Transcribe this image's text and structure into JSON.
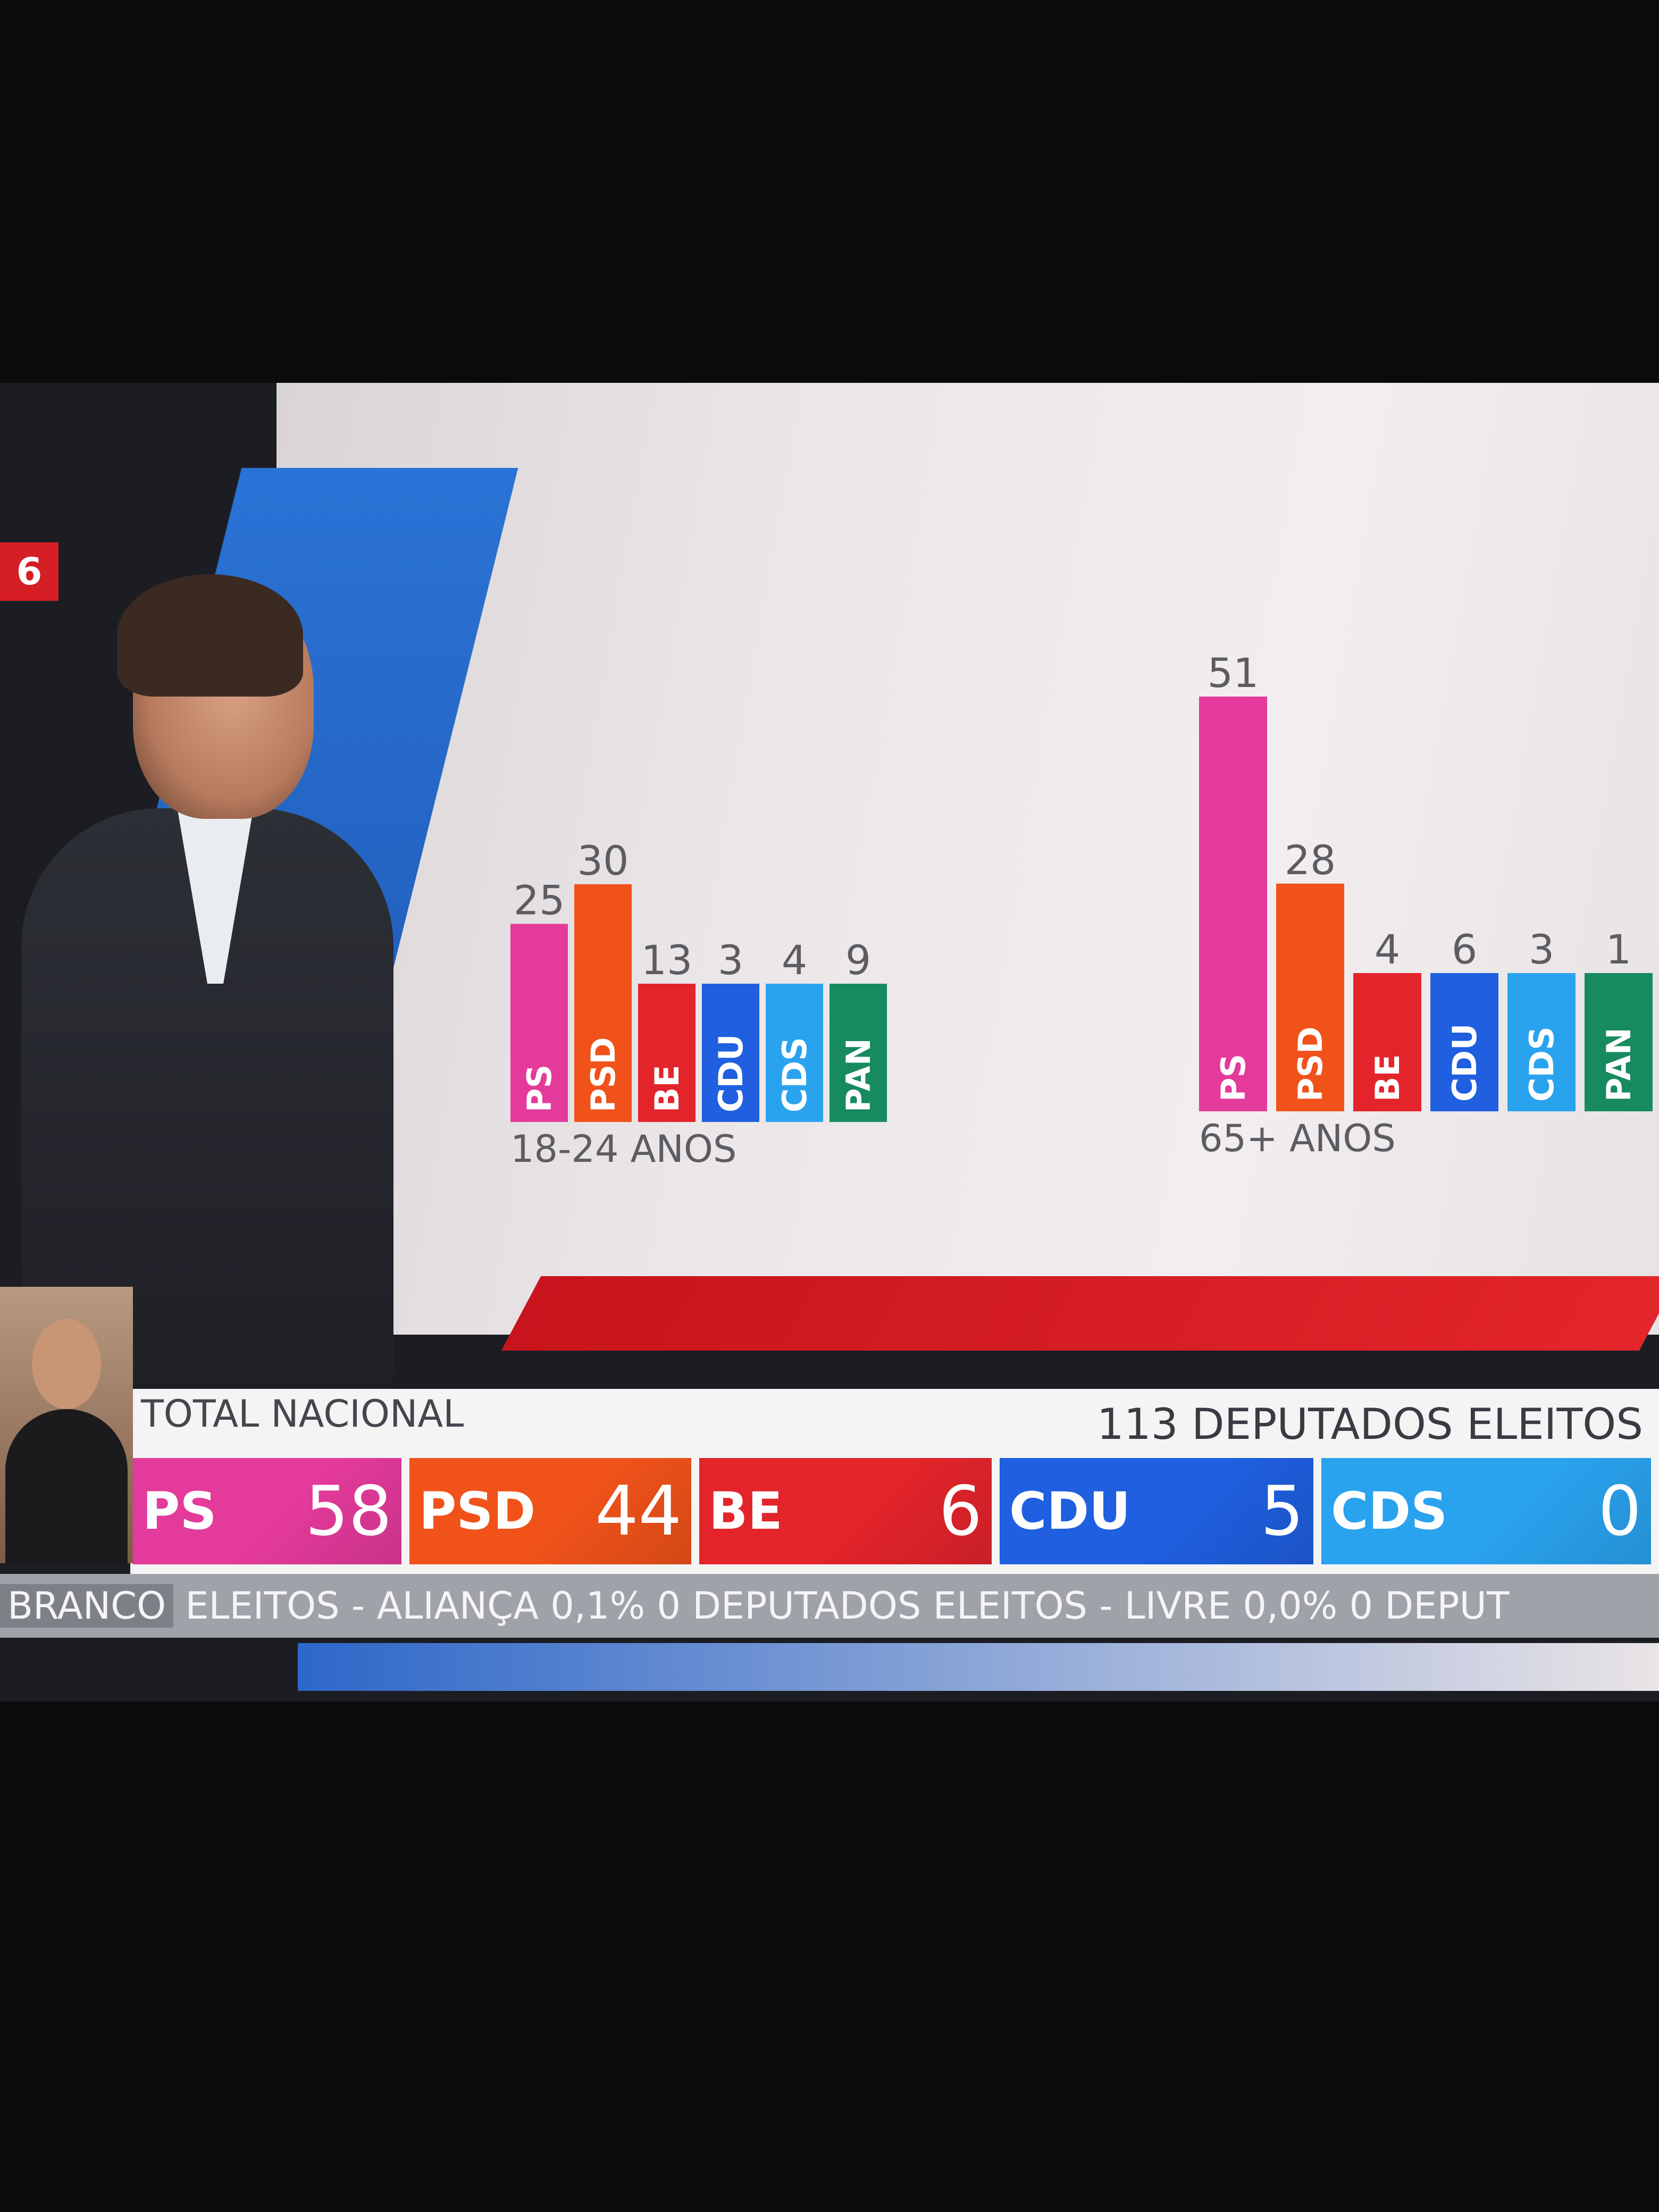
{
  "channel_logo": {
    "text": "6"
  },
  "charts": [
    {
      "group_label": "18-24 ANOS",
      "max": 51,
      "bars": [
        {
          "party": "PS",
          "value": 25,
          "color": "#e43a9b"
        },
        {
          "party": "PSD",
          "value": 30,
          "color": "#f0521a"
        },
        {
          "party": "BE",
          "value": 13,
          "color": "#e3242b"
        },
        {
          "party": "CDU",
          "value": 3,
          "color": "#1f5fe0"
        },
        {
          "party": "CDS",
          "value": 4,
          "color": "#2aa3ef"
        },
        {
          "party": "PAN",
          "value": 9,
          "color": "#188a5f"
        }
      ]
    },
    {
      "group_label": "65+ ANOS",
      "max": 51,
      "bars": [
        {
          "party": "PS",
          "value": 51,
          "color": "#e43a9b"
        },
        {
          "party": "PSD",
          "value": 28,
          "color": "#f0521a"
        },
        {
          "party": "BE",
          "value": 4,
          "color": "#e3242b"
        },
        {
          "party": "CDU",
          "value": 6,
          "color": "#1f5fe0"
        },
        {
          "party": "CDS",
          "value": 3,
          "color": "#2aa3ef"
        },
        {
          "party": "PAN",
          "value": 1,
          "color": "#188a5f"
        }
      ]
    }
  ],
  "ticker": {
    "title": "TOTAL NACIONAL",
    "elected": "113 DEPUTADOS ELEITOS",
    "parties": [
      {
        "name": "PS",
        "seats": "58",
        "color": "#e43a9b"
      },
      {
        "name": "PSD",
        "seats": "44",
        "color": "#f0521a"
      },
      {
        "name": "BE",
        "seats": "6",
        "color": "#e3242b"
      },
      {
        "name": "CDU",
        "seats": "5",
        "color": "#1f5fe0"
      },
      {
        "name": "CDS",
        "seats": "0",
        "color": "#2aa3ef"
      }
    ]
  },
  "crawl": {
    "first": "BRANCO",
    "text": "ELEITOS  -  ALIANÇA   0,1%   0 DEPUTADOS ELEITOS  -  LIVRE   0,0%   0 DEPUT"
  }
}
